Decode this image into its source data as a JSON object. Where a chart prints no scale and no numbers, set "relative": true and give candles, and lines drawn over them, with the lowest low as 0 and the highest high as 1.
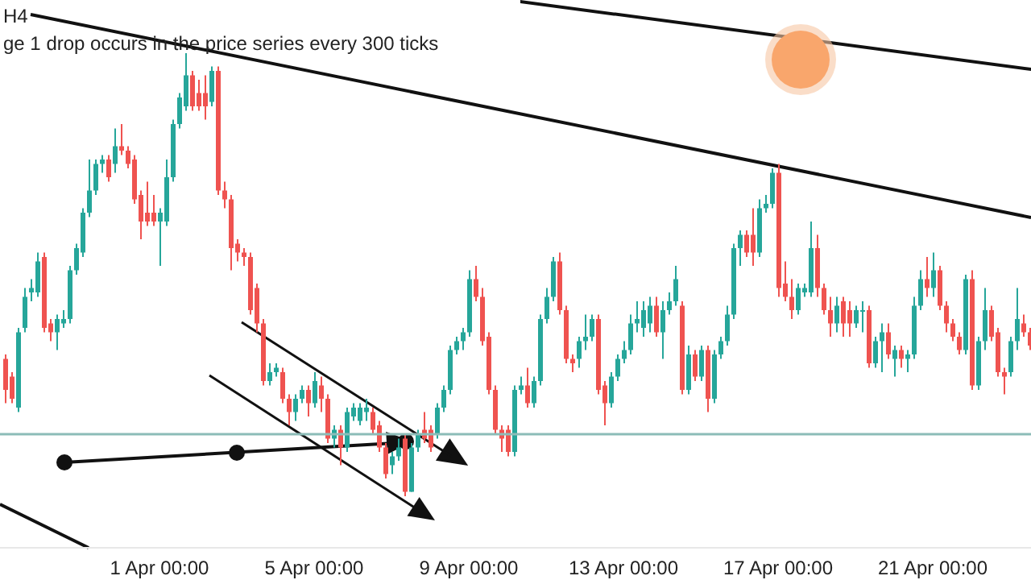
{
  "chart_data": {
    "type": "candlestick",
    "title": "H4",
    "subtitle": "ge 1 drop occurs in the price series every 300 ticks",
    "relative": true,
    "categories": [
      null,
      null,
      null,
      null,
      null,
      null,
      null,
      null,
      null,
      null,
      null,
      null,
      null,
      null,
      null,
      null,
      null,
      null,
      null,
      null,
      null,
      null,
      null,
      null,
      "1 Apr 00:00",
      null,
      null,
      null,
      null,
      null,
      null,
      null,
      null,
      null,
      null,
      null,
      null,
      null,
      null,
      null,
      null,
      null,
      null,
      null,
      null,
      null,
      null,
      null,
      "5 Apr 00:00",
      null,
      null,
      null,
      null,
      null,
      null,
      null,
      null,
      null,
      null,
      null,
      null,
      null,
      null,
      null,
      null,
      null,
      null,
      null,
      null,
      null,
      null,
      null,
      "9 Apr 00:00",
      null,
      null,
      null,
      null,
      null,
      null,
      null,
      null,
      null,
      null,
      null,
      null,
      null,
      null,
      null,
      null,
      null,
      null,
      null,
      null,
      null,
      null,
      null,
      "13 Apr 00:00",
      null,
      null,
      null,
      null,
      null,
      null,
      null,
      null,
      null,
      null,
      null,
      null,
      null,
      null,
      null,
      null,
      null,
      null,
      null,
      null,
      null,
      null,
      null,
      "17 Apr 00:00",
      null,
      null,
      null,
      null,
      null,
      null,
      null,
      null,
      null,
      null,
      null,
      null,
      null,
      null,
      null,
      null,
      null,
      null,
      null,
      null,
      null,
      null,
      null,
      "21 Apr 00:00",
      null,
      null,
      null,
      null,
      null,
      null,
      null,
      null,
      null,
      null,
      null,
      null,
      null,
      null,
      null
    ],
    "ohlc": [
      [
        0.31,
        0.32,
        0.21,
        0.24
      ],
      [
        0.27,
        0.28,
        0.21,
        0.22
      ],
      [
        0.2,
        0.38,
        0.19,
        0.37
      ],
      [
        0.38,
        0.47,
        0.37,
        0.45
      ],
      [
        0.46,
        0.49,
        0.44,
        0.47
      ],
      [
        0.46,
        0.55,
        0.45,
        0.53
      ],
      [
        0.54,
        0.55,
        0.37,
        0.38
      ],
      [
        0.39,
        0.4,
        0.35,
        0.37
      ],
      [
        0.37,
        0.41,
        0.33,
        0.4
      ],
      [
        0.39,
        0.42,
        0.38,
        0.4
      ],
      [
        0.4,
        0.52,
        0.39,
        0.51
      ],
      [
        0.51,
        0.57,
        0.5,
        0.56
      ],
      [
        0.55,
        0.65,
        0.54,
        0.64
      ],
      [
        0.64,
        0.76,
        0.63,
        0.69
      ],
      [
        0.69,
        0.76,
        0.68,
        0.75
      ],
      [
        0.75,
        0.77,
        0.73,
        0.76
      ],
      [
        0.76,
        0.77,
        0.71,
        0.72
      ],
      [
        0.75,
        0.83,
        0.73,
        0.79
      ],
      [
        0.79,
        0.84,
        0.77,
        0.78
      ],
      [
        0.78,
        0.79,
        0.74,
        0.75
      ],
      [
        0.76,
        0.77,
        0.66,
        0.67
      ],
      [
        0.68,
        0.69,
        0.58,
        0.62
      ],
      [
        0.64,
        0.71,
        0.61,
        0.62
      ],
      [
        0.64,
        0.68,
        0.61,
        0.62
      ],
      [
        0.62,
        0.65,
        0.52,
        0.64
      ],
      [
        0.62,
        0.76,
        0.61,
        0.72
      ],
      [
        0.72,
        0.85,
        0.71,
        0.84
      ],
      [
        0.84,
        0.91,
        0.83,
        0.9
      ],
      [
        0.88,
        1.0,
        0.87,
        0.95
      ],
      [
        0.95,
        0.96,
        0.87,
        0.88
      ],
      [
        0.91,
        0.94,
        0.87,
        0.88
      ],
      [
        0.91,
        0.95,
        0.85,
        0.88
      ],
      [
        0.89,
        0.97,
        0.88,
        0.96
      ],
      [
        0.96,
        0.97,
        0.68,
        0.69
      ],
      [
        0.69,
        0.71,
        0.65,
        0.67
      ],
      [
        0.67,
        0.68,
        0.51,
        0.56
      ],
      [
        0.57,
        0.58,
        0.53,
        0.55
      ],
      [
        0.55,
        0.56,
        0.52,
        0.54
      ],
      [
        0.54,
        0.55,
        0.41,
        0.42
      ],
      [
        0.47,
        0.48,
        0.37,
        0.39
      ],
      [
        0.39,
        0.4,
        0.25,
        0.26
      ],
      [
        0.26,
        0.3,
        0.25,
        0.28
      ],
      [
        0.28,
        0.3,
        0.27,
        0.29
      ],
      [
        0.28,
        0.29,
        0.21,
        0.22
      ],
      [
        0.22,
        0.23,
        0.16,
        0.19
      ],
      [
        0.19,
        0.23,
        0.17,
        0.22
      ],
      [
        0.22,
        0.25,
        0.21,
        0.24
      ],
      [
        0.24,
        0.25,
        0.18,
        0.21
      ],
      [
        0.21,
        0.28,
        0.2,
        0.26
      ],
      [
        0.25,
        0.27,
        0.19,
        0.22
      ],
      [
        0.22,
        0.23,
        0.12,
        0.13
      ],
      [
        0.13,
        0.16,
        0.11,
        0.15
      ],
      [
        0.15,
        0.16,
        0.07,
        0.11
      ],
      [
        0.11,
        0.2,
        0.1,
        0.19
      ],
      [
        0.18,
        0.21,
        0.17,
        0.2
      ],
      [
        0.17,
        0.21,
        0.16,
        0.2
      ],
      [
        0.19,
        0.22,
        0.17,
        0.2
      ],
      [
        0.19,
        0.2,
        0.14,
        0.15
      ],
      [
        0.16,
        0.17,
        0.1,
        0.11
      ],
      [
        0.11,
        0.12,
        0.04,
        0.05
      ],
      [
        0.07,
        0.1,
        0.05,
        0.09
      ],
      [
        0.09,
        0.13,
        0.08,
        0.11
      ],
      [
        0.13,
        0.14,
        0.0,
        0.01
      ],
      [
        0.01,
        0.12,
        0.01,
        0.11
      ],
      [
        0.11,
        0.15,
        0.1,
        0.14
      ],
      [
        0.15,
        0.19,
        0.12,
        0.13
      ],
      [
        0.15,
        0.16,
        0.1,
        0.11
      ],
      [
        0.14,
        0.21,
        0.13,
        0.2
      ],
      [
        0.2,
        0.25,
        0.19,
        0.24
      ],
      [
        0.24,
        0.34,
        0.23,
        0.33
      ],
      [
        0.33,
        0.36,
        0.32,
        0.35
      ],
      [
        0.35,
        0.38,
        0.33,
        0.37
      ],
      [
        0.37,
        0.51,
        0.36,
        0.49
      ],
      [
        0.49,
        0.52,
        0.44,
        0.45
      ],
      [
        0.45,
        0.47,
        0.34,
        0.35
      ],
      [
        0.36,
        0.37,
        0.23,
        0.24
      ],
      [
        0.24,
        0.25,
        0.14,
        0.15
      ],
      [
        0.15,
        0.16,
        0.1,
        0.13
      ],
      [
        0.15,
        0.16,
        0.09,
        0.1
      ],
      [
        0.1,
        0.25,
        0.09,
        0.24
      ],
      [
        0.24,
        0.27,
        0.23,
        0.25
      ],
      [
        0.25,
        0.29,
        0.2,
        0.21
      ],
      [
        0.21,
        0.27,
        0.2,
        0.26
      ],
      [
        0.26,
        0.41,
        0.25,
        0.4
      ],
      [
        0.4,
        0.47,
        0.39,
        0.45
      ],
      [
        0.45,
        0.54,
        0.44,
        0.53
      ],
      [
        0.53,
        0.55,
        0.41,
        0.42
      ],
      [
        0.42,
        0.43,
        0.3,
        0.31
      ],
      [
        0.31,
        0.32,
        0.28,
        0.3
      ],
      [
        0.31,
        0.36,
        0.29,
        0.35
      ],
      [
        0.35,
        0.41,
        0.33,
        0.36
      ],
      [
        0.36,
        0.41,
        0.35,
        0.4
      ],
      [
        0.4,
        0.41,
        0.23,
        0.24
      ],
      [
        0.25,
        0.26,
        0.16,
        0.21
      ],
      [
        0.21,
        0.28,
        0.2,
        0.27
      ],
      [
        0.27,
        0.32,
        0.26,
        0.31
      ],
      [
        0.31,
        0.35,
        0.3,
        0.33
      ],
      [
        0.33,
        0.41,
        0.32,
        0.39
      ],
      [
        0.39,
        0.44,
        0.37,
        0.4
      ],
      [
        0.38,
        0.44,
        0.36,
        0.42
      ],
      [
        0.39,
        0.45,
        0.37,
        0.43
      ],
      [
        0.43,
        0.45,
        0.36,
        0.37
      ],
      [
        0.37,
        0.44,
        0.31,
        0.42
      ],
      [
        0.42,
        0.46,
        0.41,
        0.44
      ],
      [
        0.44,
        0.52,
        0.43,
        0.49
      ],
      [
        0.43,
        0.44,
        0.23,
        0.24
      ],
      [
        0.24,
        0.34,
        0.23,
        0.32
      ],
      [
        0.32,
        0.33,
        0.26,
        0.27
      ],
      [
        0.27,
        0.34,
        0.26,
        0.33
      ],
      [
        0.33,
        0.34,
        0.19,
        0.22
      ],
      [
        0.22,
        0.33,
        0.21,
        0.32
      ],
      [
        0.32,
        0.36,
        0.31,
        0.35
      ],
      [
        0.35,
        0.43,
        0.34,
        0.41
      ],
      [
        0.41,
        0.57,
        0.4,
        0.56
      ],
      [
        0.56,
        0.6,
        0.52,
        0.59
      ],
      [
        0.59,
        0.6,
        0.54,
        0.55
      ],
      [
        0.59,
        0.65,
        0.52,
        0.55
      ],
      [
        0.55,
        0.67,
        0.54,
        0.65
      ],
      [
        0.65,
        0.68,
        0.64,
        0.66
      ],
      [
        0.66,
        0.74,
        0.65,
        0.73
      ],
      [
        0.73,
        0.75,
        0.45,
        0.47
      ],
      [
        0.48,
        0.53,
        0.44,
        0.45
      ],
      [
        0.45,
        0.49,
        0.4,
        0.42
      ],
      [
        0.42,
        0.48,
        0.41,
        0.47
      ],
      [
        0.46,
        0.48,
        0.45,
        0.47
      ],
      [
        0.46,
        0.62,
        0.45,
        0.56
      ],
      [
        0.56,
        0.59,
        0.45,
        0.47
      ],
      [
        0.47,
        0.48,
        0.41,
        0.42
      ],
      [
        0.42,
        0.45,
        0.36,
        0.39
      ],
      [
        0.39,
        0.45,
        0.37,
        0.43
      ],
      [
        0.44,
        0.45,
        0.36,
        0.39
      ],
      [
        0.42,
        0.44,
        0.36,
        0.39
      ],
      [
        0.39,
        0.43,
        0.38,
        0.42
      ],
      [
        0.42,
        0.44,
        0.37,
        0.42
      ],
      [
        0.42,
        0.43,
        0.29,
        0.3
      ],
      [
        0.3,
        0.36,
        0.29,
        0.35
      ],
      [
        0.35,
        0.39,
        0.28,
        0.37
      ],
      [
        0.37,
        0.39,
        0.31,
        0.32
      ],
      [
        0.31,
        0.34,
        0.27,
        0.33
      ],
      [
        0.33,
        0.34,
        0.29,
        0.31
      ],
      [
        0.31,
        0.33,
        0.28,
        0.32
      ],
      [
        0.32,
        0.45,
        0.31,
        0.43
      ],
      [
        0.43,
        0.51,
        0.42,
        0.49
      ],
      [
        0.49,
        0.54,
        0.45,
        0.47
      ],
      [
        0.47,
        0.55,
        0.45,
        0.51
      ],
      [
        0.51,
        0.52,
        0.42,
        0.43
      ],
      [
        0.43,
        0.44,
        0.37,
        0.39
      ],
      [
        0.39,
        0.4,
        0.35,
        0.36
      ],
      [
        0.36,
        0.37,
        0.32,
        0.33
      ],
      [
        0.33,
        0.5,
        0.32,
        0.49
      ],
      [
        0.49,
        0.51,
        0.24,
        0.25
      ],
      [
        0.25,
        0.36,
        0.24,
        0.35
      ],
      [
        0.35,
        0.47,
        0.33,
        0.42
      ],
      [
        0.42,
        0.43,
        0.35,
        0.36
      ],
      [
        0.37,
        0.38,
        0.27,
        0.28
      ],
      [
        0.28,
        0.29,
        0.23,
        0.27
      ],
      [
        0.28,
        0.36,
        0.27,
        0.35
      ],
      [
        0.35,
        0.47,
        0.33,
        0.4
      ],
      [
        0.39,
        0.41,
        0.36,
        0.37
      ],
      [
        0.37,
        0.38,
        0.33,
        0.34
      ]
    ],
    "ref_lines": [
      {
        "axis": "y",
        "value": 0.14,
        "color": "#8cbcb8"
      }
    ]
  }
}
